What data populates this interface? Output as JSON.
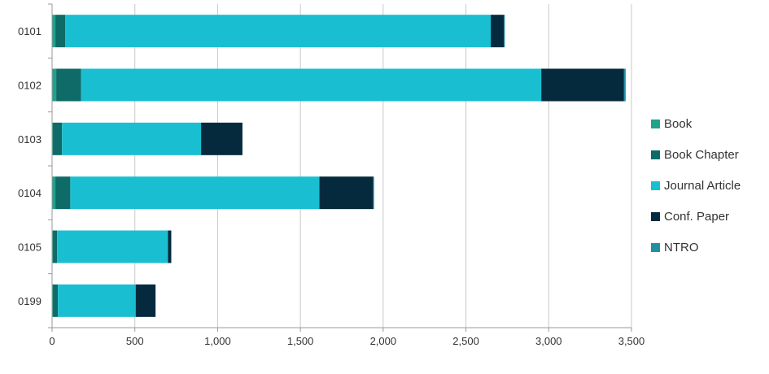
{
  "chart_data": {
    "type": "bar",
    "orientation": "horizontal",
    "stacked": true,
    "categories": [
      "0101",
      "0102",
      "0103",
      "0104",
      "0105",
      "0199"
    ],
    "series": [
      {
        "name": "Book",
        "color": "#1fa38a",
        "values": [
          20,
          25,
          5,
          20,
          5,
          5
        ]
      },
      {
        "name": "Book Chapter",
        "color": "#0e6b68",
        "values": [
          60,
          150,
          55,
          90,
          25,
          30
        ]
      },
      {
        "name": "Journal Article",
        "color": "#19bfd1",
        "values": [
          2570,
          2780,
          840,
          1505,
          670,
          470
        ]
      },
      {
        "name": "Conf. Paper",
        "color": "#062a3d",
        "values": [
          80,
          500,
          250,
          325,
          20,
          120
        ]
      },
      {
        "name": "NTRO",
        "color": "#248ea3",
        "values": [
          5,
          10,
          0,
          5,
          0,
          0
        ]
      }
    ],
    "xticks": [
      "0",
      "500",
      "1,000",
      "1,500",
      "2,000",
      "2,500",
      "3,000",
      "3,500"
    ],
    "xlim": [
      0,
      3500
    ],
    "grid": "vertical",
    "legend_position": "right"
  }
}
